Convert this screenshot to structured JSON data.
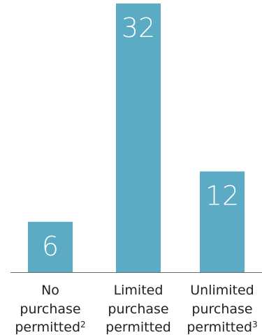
{
  "chart_data": {
    "type": "bar",
    "categories": [
      [
        "No",
        "purchase",
        "permitted"
      ],
      [
        "Limited",
        "purchase",
        "permitted"
      ],
      [
        "Unlimited",
        "purchase",
        "permitted"
      ]
    ],
    "category_footnotes": [
      "2",
      "",
      "3"
    ],
    "values": [
      6,
      32,
      12
    ],
    "data_labels": [
      "6",
      "32",
      "12"
    ],
    "title": "",
    "xlabel": "",
    "ylabel": "",
    "ylim": [
      0,
      32
    ],
    "bar_color": "#5aabc3",
    "label_color": "#ffffff",
    "text_color": "#222222",
    "axis_color": "#6b6b6b",
    "grid": false,
    "legend": "none"
  }
}
